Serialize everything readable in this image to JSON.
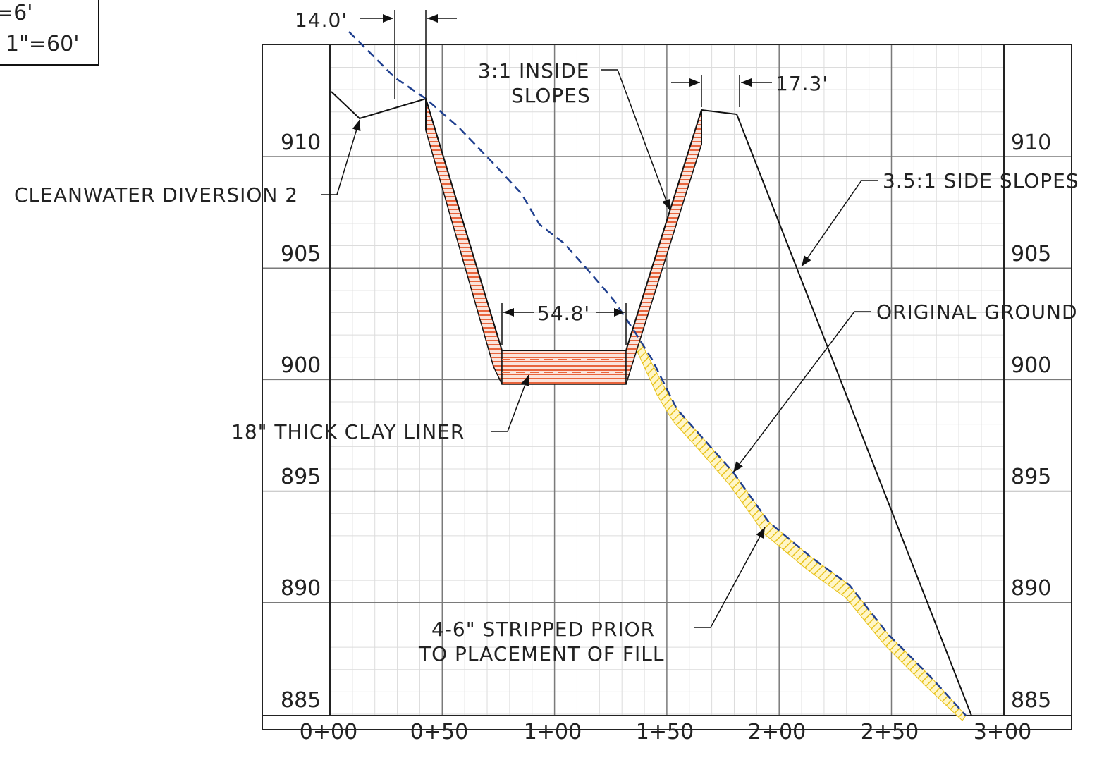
{
  "scale_box": {
    "line1": "=6'",
    "line2": "1\"=60'"
  },
  "elevations": [
    "910",
    "905",
    "900",
    "895",
    "890",
    "885"
  ],
  "stations": [
    "0+00",
    "0+50",
    "1+00",
    "1+50",
    "2+00",
    "2+50",
    "3+00"
  ],
  "annotations": {
    "dim_14": "14.0'",
    "dim_17": "17.3'",
    "dim_54": "54.8'",
    "inside_slopes_1": "3:1 INSIDE",
    "inside_slopes_2": "SLOPES",
    "cleanwater": "CLEANWATER DIVERSION 2",
    "side_slopes": "3.5:1 SIDE SLOPES",
    "original_ground": "ORIGINAL GROUND",
    "clay_liner": "18\" THICK CLAY LINER",
    "stripped_1": "4-6\" STRIPPED PRIOR",
    "stripped_2": "TO PLACEMENT OF FILL"
  },
  "colors": {
    "grid": "#8a8a8a",
    "minor_grid": "#d9d9d9",
    "ground_line": "#1f3f8f",
    "clay": "#e8643c",
    "fill_hatch": "#e8c21a",
    "line": "#111111"
  }
}
